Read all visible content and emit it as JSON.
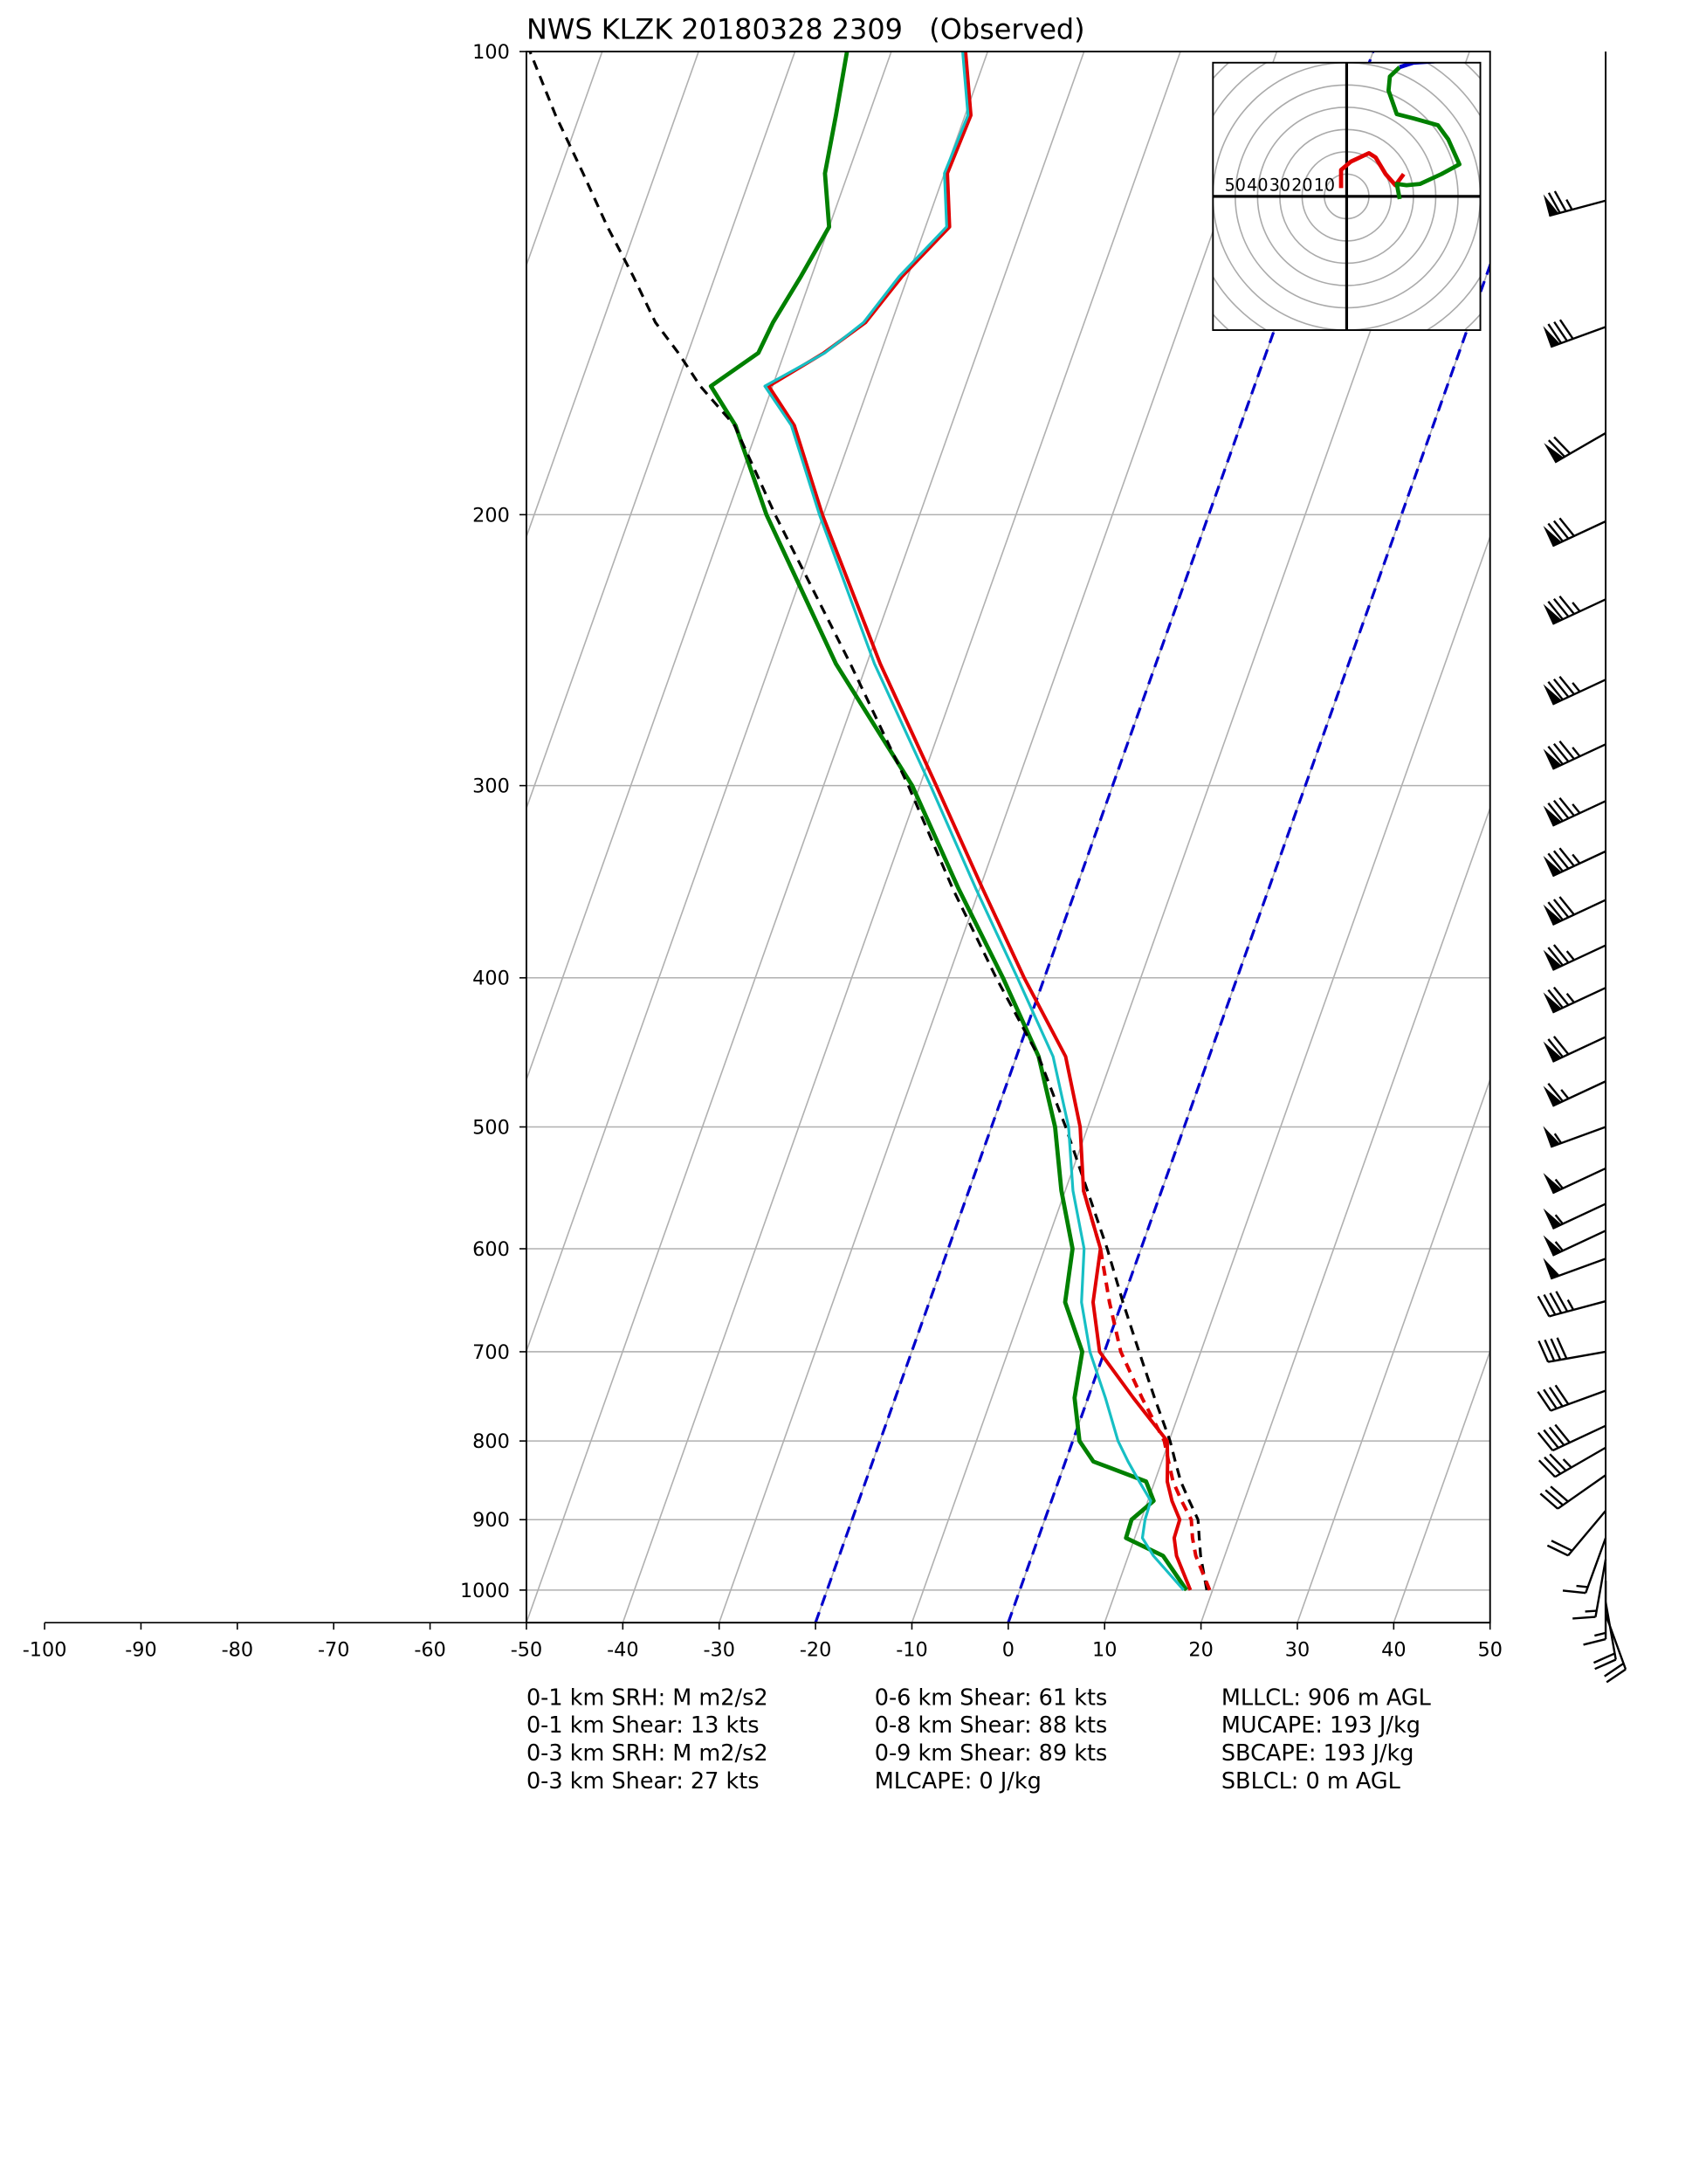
{
  "chart_data": {
    "type": "skewt",
    "title": "NWS KLZK 20180328 2309   (Observed)",
    "xlim": [
      -50,
      50
    ],
    "xticks": [
      -100,
      -90,
      -80,
      -70,
      -60,
      -50,
      -40,
      -30,
      -20,
      -10,
      0,
      10,
      20,
      30,
      40,
      50
    ],
    "ylim": [
      1050,
      100
    ],
    "yticks": [
      100,
      200,
      300,
      400,
      500,
      600,
      700,
      800,
      900,
      1000
    ],
    "log_scale": true,
    "grid": true,
    "grid_color": "#b0b0b0",
    "highlighted_isotherms": {
      "values": [
        0,
        -20
      ],
      "color": "#0000cc"
    },
    "pressure": [
      1000,
      950,
      925,
      900,
      875,
      850,
      825,
      800,
      750,
      700,
      650,
      600,
      550,
      500,
      450,
      400,
      350,
      300,
      250,
      200,
      175,
      165,
      157,
      150,
      140,
      130,
      120,
      110,
      100
    ],
    "series": [
      {
        "color": "#008000",
        "width": 3,
        "dashed": false,
        "values": [
          17.3,
          13.6,
          9.1,
          9.0,
          10.6,
          9.1,
          2.9,
          0.7,
          -1.4,
          -2.3,
          -5.9,
          -7.1,
          -10.4,
          -13.4,
          -17.7,
          -24.3,
          -32.2,
          -40.8,
          -53.2,
          -65.9,
          -72.4,
          -76.4,
          -72.7,
          -72.3,
          -71.1,
          -70.0,
          -72.4,
          -73.4,
          -74.6
        ]
      },
      {
        "color": "#000000",
        "width": 2,
        "dashed": true,
        "values": [
          19.4,
          17.5,
          16.7,
          15.9,
          14.3,
          12.7,
          11.4,
          10.1,
          6.9,
          3.6,
          0.1,
          -3.5,
          -7.7,
          -12.3,
          -17.7,
          -25.0,
          -32.8,
          -41.2,
          -51.7,
          -65.0,
          -72.5,
          -77.5,
          -81.0,
          -84.5,
          -88.5,
          -93.0,
          -97.5,
          -102.5,
          -107.5
        ]
      },
      {
        "color": "#e00000",
        "width": 2.5,
        "dashed": true,
        "values": [
          19.7,
          17.0,
          16.0,
          15.2,
          13.5,
          11.9,
          10.7,
          9.5,
          5.6,
          1.7,
          -1.3,
          -4.2,
          -8.1,
          null,
          null,
          null,
          null,
          null,
          null,
          null,
          null,
          null,
          null,
          null,
          null,
          null,
          null,
          null,
          null
        ]
      },
      {
        "color": "#e00000",
        "width": 2.5,
        "dashed": false,
        "values": [
          17.7,
          15.0,
          14.1,
          14.0,
          12.5,
          11.3,
          10.6,
          9.8,
          4.7,
          -0.5,
          -3.0,
          -4.2,
          -8.1,
          -10.8,
          -14.9,
          -22.1,
          -29.7,
          -38.3,
          -48.6,
          -60.1,
          -66.3,
          -70.4,
          -65.9,
          -62.7,
          -60.6,
          -57.5,
          -59.7,
          -59.4,
          -62.3
        ]
      },
      {
        "color": "#17bfc4",
        "width": 2,
        "dashed": false,
        "values": [
          17.0,
          12.6,
          10.8,
          10.4,
          10.3,
          8.4,
          6.5,
          4.7,
          1.8,
          -1.5,
          -4.2,
          -5.9,
          -9.2,
          -12.0,
          -16.2,
          -22.8,
          -30.4,
          -38.9,
          -49.2,
          -60.4,
          -66.6,
          -70.8,
          -65.8,
          -62.9,
          -60.9,
          -57.8,
          -60.0,
          -59.7,
          -62.6
        ]
      }
    ],
    "wind": {
      "pressure": [
        125,
        151,
        177,
        202,
        227,
        256,
        282,
        307,
        331,
        356,
        381,
        406,
        437,
        467,
        500,
        532,
        561,
        584,
        609,
        649,
        700,
        742,
        782,
        808,
        842,
        888,
        925,
        955,
        986,
        1018,
        1037
      ],
      "speed": [
        75,
        80,
        70,
        80,
        85,
        85,
        85,
        85,
        85,
        80,
        75,
        75,
        70,
        65,
        55,
        55,
        55,
        55,
        50,
        45,
        40,
        40,
        40,
        35,
        30,
        20,
        15,
        15,
        15,
        20,
        20
      ],
      "direction": [
        255,
        250,
        240,
        245,
        245,
        245,
        245,
        245,
        245,
        245,
        245,
        245,
        245,
        245,
        250,
        245,
        245,
        245,
        250,
        255,
        260,
        250,
        245,
        240,
        235,
        220,
        200,
        190,
        180,
        170,
        160
      ]
    },
    "hodograph": {
      "rings": [
        10,
        20,
        30,
        40,
        50
      ],
      "outer_rings": [
        60,
        70,
        80
      ],
      "ulim": [
        -60,
        60
      ],
      "vlim": [
        -60,
        60
      ],
      "segments": [
        {
          "color": "#e00000",
          "u": [
            -2.5,
            -2.5,
            1.9,
            10,
            13,
            17.5,
            21.9,
            25.6
          ],
          "v": [
            3.75,
            11.9,
            15.6,
            19.4,
            17.5,
            10,
            5,
            10
          ]
        },
        {
          "color": "#008000",
          "u": [
            23.8,
            22.5,
            26.9,
            33,
            42.5,
            50.6,
            45.6,
            41,
            30,
            22.5,
            18.8,
            19.4,
            23.8
          ],
          "v": [
            -1.2,
            5.6,
            5,
            5.6,
            10,
            14.4,
            25.6,
            31.9,
            35,
            36.9,
            47.5,
            53.8,
            58
          ]
        },
        {
          "color": "#0000cc",
          "u": [
            23.8,
            30,
            39.4
          ],
          "v": [
            58,
            60,
            60.6
          ]
        }
      ]
    },
    "stats": [
      [
        "0-1 km SRH: M m2/s2",
        "0-1 km Shear: 13 kts",
        "0-3 km SRH: M m2/s2",
        "0-3 km Shear: 27 kts"
      ],
      [
        "0-6 km Shear: 61 kts",
        "0-8 km Shear: 88 kts",
        "0-9 km Shear: 89 kts",
        "MLCAPE: 0 J/kg"
      ],
      [
        "MLLCL: 906 m AGL",
        "MUCAPE: 193 J/kg",
        "SBCAPE: 193 J/kg",
        "SBLCL: 0 m AGL"
      ]
    ]
  }
}
